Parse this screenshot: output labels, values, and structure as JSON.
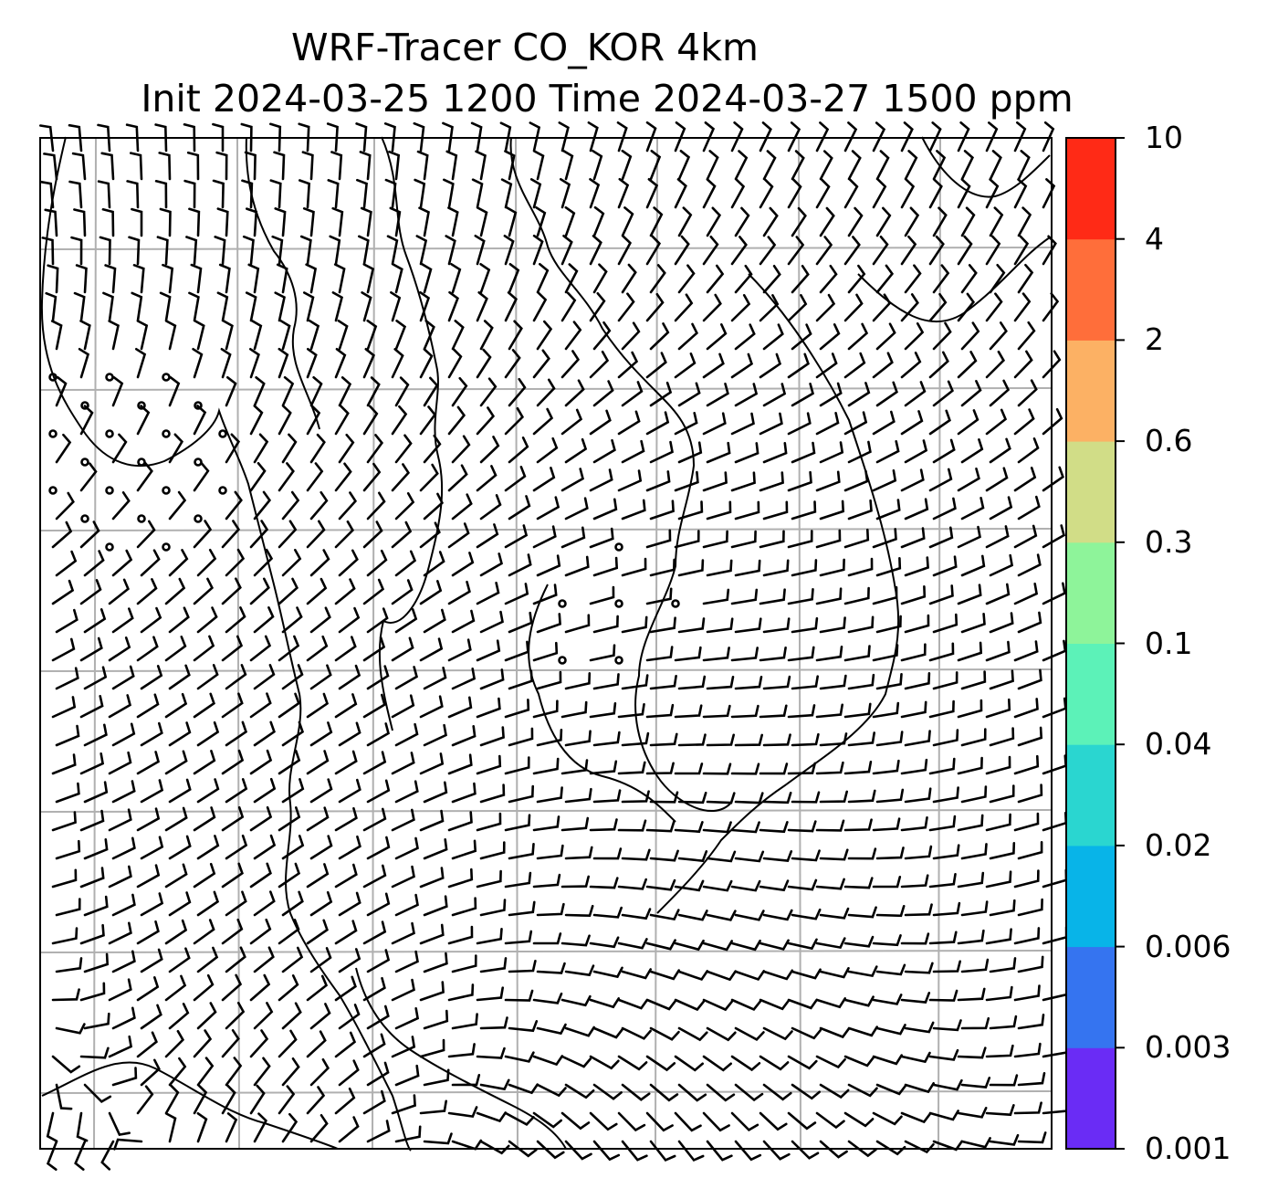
{
  "title": {
    "line1": "WRF-Tracer CO_KOR 4km",
    "line2": "Init 2024-03-25 1200 Time 2024-03-27 1500 ppm"
  },
  "colorbar": {
    "levels": [
      "0.001",
      "0.003",
      "0.006",
      "0.02",
      "0.04",
      "0.1",
      "0.3",
      "0.6",
      "2",
      "4",
      "10"
    ],
    "colors": [
      "#6a2cf5",
      "#3574f0",
      "#08b4e8",
      "#2ad6d0",
      "#5cf2b8",
      "#8ef49a",
      "#d1dd87",
      "#fcb164",
      "#ff6e3a",
      "#ff2a16"
    ]
  },
  "map": {
    "style": {
      "gridline_color": "#b0b0b0",
      "barb_color": "#000000",
      "coastline_color": "#000000"
    },
    "field": "wind barbs over coastlines",
    "grid": "on"
  }
}
